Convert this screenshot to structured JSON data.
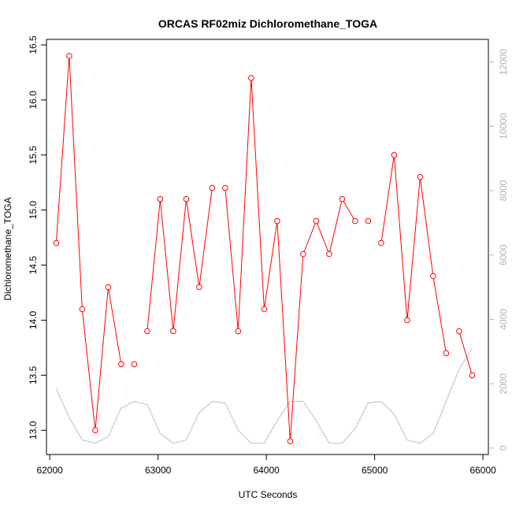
{
  "chart_data": {
    "type": "line",
    "title": "ORCAS RF02miz Dichloromethane_TOGA",
    "xlabel": "UTC Seconds",
    "ylabel": "Dichloromethane_TOGA",
    "xlim": [
      61970,
      66050
    ],
    "ylim": [
      12.78,
      16.55
    ],
    "y2lim": [
      -200,
      12700
    ],
    "x_ticks": [
      "62000",
      "63000",
      "64000",
      "65000",
      "66000"
    ],
    "y_ticks": [
      "13.0",
      "13.5",
      "14.0",
      "14.5",
      "15.0",
      "15.5",
      "16.0",
      "16.5"
    ],
    "y2_ticks": [
      "0",
      "2000",
      "4000",
      "6000",
      "8000",
      "10000",
      "12000"
    ],
    "series": [
      {
        "color": "#ff0000",
        "axis": "left",
        "markers": "open-circle",
        "x": [
          62060,
          62180,
          62300,
          62420,
          62540,
          62660,
          62780,
          62900,
          63020,
          63140,
          63260,
          63380,
          63500,
          63620,
          63740,
          63860,
          63980,
          64100,
          64220,
          64340,
          64460,
          64580,
          64700,
          64820,
          64940,
          65060,
          65180,
          65300,
          65420,
          65540,
          65660,
          65780,
          65900
        ],
        "y": [
          14.7,
          16.4,
          14.1,
          13.0,
          14.3,
          13.6,
          13.6,
          13.9,
          15.1,
          13.9,
          15.1,
          14.3,
          15.2,
          15.2,
          13.9,
          16.2,
          14.1,
          14.9,
          12.9,
          14.6,
          14.9,
          14.6,
          15.1,
          14.9,
          14.9,
          14.7,
          15.5,
          14.0,
          15.3,
          14.4,
          13.7,
          13.9,
          13.5
        ],
        "connected": [
          true,
          true,
          true,
          true,
          true,
          false,
          false,
          true,
          true,
          true,
          true,
          true,
          false,
          true,
          true,
          true,
          true,
          true,
          true,
          true,
          true,
          true,
          true,
          false,
          false,
          true,
          true,
          true,
          true,
          true,
          false,
          true
        ]
      },
      {
        "color": "#c8c8c8",
        "axis": "right",
        "markers": "none",
        "x": [
          62060,
          62180,
          62300,
          62420,
          62540,
          62660,
          62780,
          62900,
          63020,
          63140,
          63260,
          63380,
          63500,
          63620,
          63740,
          63860,
          63980,
          64100,
          64220,
          64340,
          64460,
          64580,
          64700,
          64820,
          64940,
          65060,
          65180,
          65300,
          65420,
          65540,
          65660,
          65780,
          65900
        ],
        "y": [
          1850,
          950,
          250,
          150,
          350,
          1250,
          1450,
          1350,
          450,
          150,
          250,
          1100,
          1450,
          1400,
          550,
          150,
          150,
          850,
          1450,
          1450,
          850,
          150,
          150,
          600,
          1400,
          1450,
          1050,
          250,
          150,
          450,
          1450,
          2450,
          3100
        ]
      }
    ]
  }
}
